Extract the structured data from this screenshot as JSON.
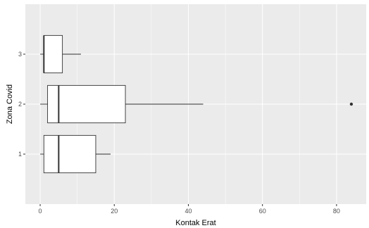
{
  "chart_data": {
    "type": "boxplot",
    "orientation": "horizontal",
    "xlabel": "Kontak Erat",
    "ylabel": "Zona Covid",
    "xlim": [
      -4,
      88
    ],
    "x_ticks": [
      0,
      20,
      40,
      60,
      80
    ],
    "x_tick_labels": [
      "0",
      "20",
      "40",
      "60",
      "80"
    ],
    "categories": [
      "1",
      "2",
      "3"
    ],
    "boxes": [
      {
        "category": "1",
        "whisker_low": 0,
        "q1": 1,
        "median": 5,
        "q3": 15,
        "whisker_high": 19,
        "outliers": []
      },
      {
        "category": "2",
        "whisker_low": 0,
        "q1": 2,
        "median": 5,
        "q3": 23,
        "whisker_high": 44,
        "outliers": [
          84
        ]
      },
      {
        "category": "3",
        "whisker_low": 0,
        "q1": 1,
        "median": 1,
        "q3": 6,
        "whisker_high": 11,
        "outliers": []
      }
    ],
    "grid": true,
    "colors": {
      "panel_background": "#ebebeb",
      "grid_major": "#ffffff",
      "box_fill": "#ffffff",
      "box_line": "#333333",
      "outlier": "#333333",
      "whisker": "#333333"
    }
  }
}
